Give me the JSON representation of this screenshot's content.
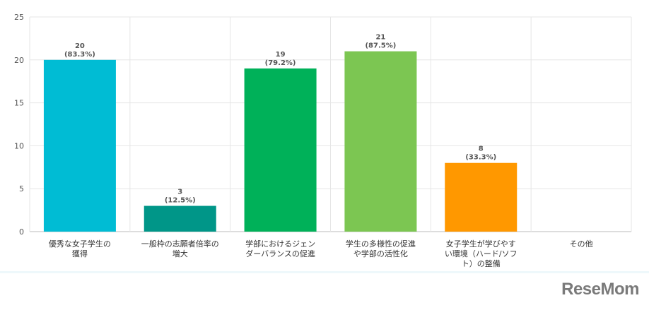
{
  "chart_data": {
    "type": "bar",
    "categories": [
      [
        "優秀な女子学生の",
        "獲得"
      ],
      [
        "一般枠の志願者倍率の",
        "増大"
      ],
      [
        "学部におけるジェン",
        "ダーバランスの促進"
      ],
      [
        "学生の多様性の促進",
        "や学部の活性化"
      ],
      [
        "女子学生が学びやす",
        "い環境（ハード/ソフ",
        "ト）の整備"
      ],
      [
        "その他"
      ]
    ],
    "values": [
      20,
      3,
      19,
      21,
      8,
      0
    ],
    "percent_labels": [
      "(83.3%)",
      "(12.5%)",
      "(79.2%)",
      "(87.5%)",
      "(33.3%)",
      ""
    ],
    "value_labels": [
      "20",
      "3",
      "19",
      "21",
      "8",
      ""
    ],
    "colors": [
      "#00bcd4",
      "#009688",
      "#00b159",
      "#7cc652",
      "#ff9800",
      "#cccccc"
    ],
    "ylim": [
      0,
      25
    ],
    "yticks": [
      0,
      5,
      10,
      15,
      20,
      25
    ],
    "grid": true,
    "legend": "none"
  },
  "branding": {
    "logo_text": "ReseMom"
  }
}
